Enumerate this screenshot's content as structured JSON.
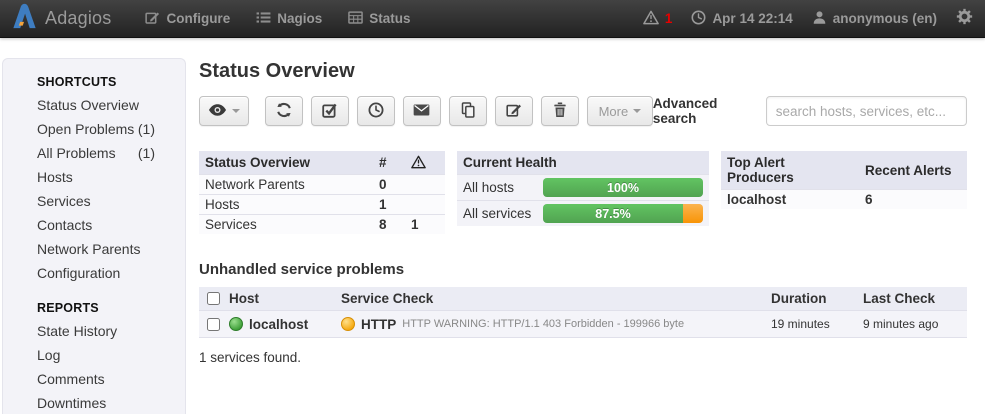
{
  "navbar": {
    "brand": "Adagios",
    "menu": [
      {
        "label": "Configure"
      },
      {
        "label": "Nagios"
      },
      {
        "label": "Status"
      }
    ],
    "alert_count": "1",
    "datetime": "Apr 14 22:14",
    "user": "anonymous (en)"
  },
  "sidebar": {
    "sections": [
      {
        "title": "SHORTCUTS",
        "items": [
          {
            "label": "Status Overview",
            "count": ""
          },
          {
            "label": "Open Problems",
            "count": "(1)"
          },
          {
            "label": "All Problems",
            "count": "(1)"
          },
          {
            "label": "Hosts",
            "count": ""
          },
          {
            "label": "Services",
            "count": ""
          },
          {
            "label": "Contacts",
            "count": ""
          },
          {
            "label": "Network Parents",
            "count": ""
          },
          {
            "label": "Configuration",
            "count": ""
          }
        ]
      },
      {
        "title": "REPORTS",
        "items": [
          {
            "label": "State History",
            "count": ""
          },
          {
            "label": "Log",
            "count": ""
          },
          {
            "label": "Comments",
            "count": ""
          },
          {
            "label": "Downtimes",
            "count": ""
          }
        ]
      }
    ]
  },
  "main": {
    "title": "Status Overview",
    "toolbar": {
      "more": "More",
      "advanced_search": "Advanced search",
      "search_placeholder": "search hosts, services, etc...",
      "search_value": ""
    },
    "panels": {
      "status": {
        "title": "Status Overview",
        "count_header": "#",
        "rows": [
          {
            "label": "Network Parents",
            "count": "0",
            "warnings": ""
          },
          {
            "label": "Hosts",
            "count": "1",
            "warnings": ""
          },
          {
            "label": "Services",
            "count": "8",
            "warnings": "1"
          }
        ]
      },
      "health": {
        "title": "Current Health",
        "rows": [
          {
            "label": "All hosts",
            "percent_label": "100%",
            "percent": 100
          },
          {
            "label": "All services",
            "percent_label": "87.5%",
            "percent": 87.5
          }
        ]
      },
      "alerts": {
        "title": "Top Alert Producers",
        "recent_header": "Recent Alerts",
        "rows": [
          {
            "host": "localhost",
            "count": "6"
          }
        ]
      }
    },
    "problems": {
      "title": "Unhandled service problems",
      "host_header": "Host",
      "service_header": "Service Check",
      "duration_header": "Duration",
      "last_check_header": "Last Check",
      "rows": [
        {
          "host": "localhost",
          "host_status": "ok",
          "service": "HTTP",
          "service_status": "warning",
          "detail": "HTTP WARNING: HTTP/1.1 403 Forbidden - 199966 byte",
          "duration": "19 minutes",
          "last_check": "9 minutes ago"
        }
      ],
      "summary": "1 services found."
    }
  },
  "colors": {
    "navbar_bg": "#2c2c2c",
    "panel_header_bg": "#e4e5f0",
    "success_green": "#5bb75b",
    "warning_orange": "#f89406",
    "alert_red": "#e60000",
    "ok_dot_green": "#3d9e37",
    "warn_dot_yellow": "#f5a80e",
    "logo_blue": "#3e7dc1",
    "logo_accent": "#f2a33c"
  }
}
